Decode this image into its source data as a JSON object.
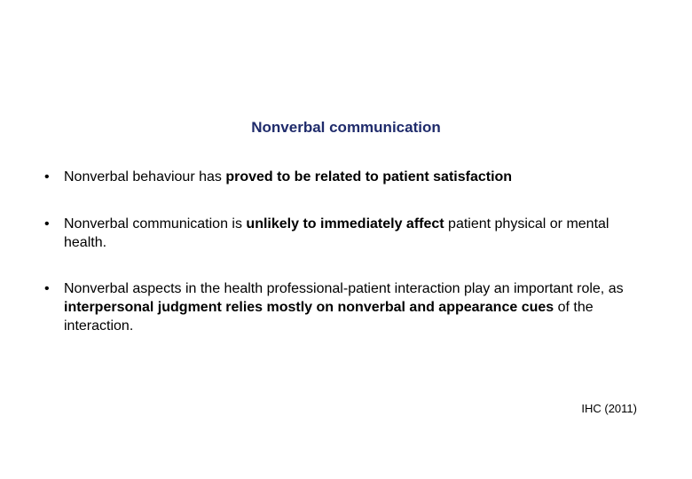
{
  "slide": {
    "title": "Nonverbal communication",
    "title_color": "#1f2b6b",
    "title_fontsize": 17,
    "title_fontweight": "bold",
    "background_color": "#ffffff",
    "body_text_color": "#000000",
    "body_fontsize": 16,
    "bullet_char": "•",
    "bullets": [
      {
        "segments": [
          {
            "text": "Nonverbal behaviour has ",
            "bold": false
          },
          {
            "text": "proved to be related to patient satisfaction",
            "bold": true
          }
        ]
      },
      {
        "segments": [
          {
            "text": "Nonverbal communication is ",
            "bold": false
          },
          {
            "text": "unlikely to immediately affect ",
            "bold": true
          },
          {
            "text": "patient physical or mental health.",
            "bold": false
          }
        ]
      },
      {
        "segments": [
          {
            "text": "Nonverbal aspects in the health professional-patient interaction play an important role, as ",
            "bold": false
          },
          {
            "text": "interpersonal judgment relies mostly on nonverbal and appearance cues ",
            "bold": true
          },
          {
            "text": "of the interaction.",
            "bold": false
          }
        ]
      }
    ],
    "citation": "IHC (2011)"
  }
}
